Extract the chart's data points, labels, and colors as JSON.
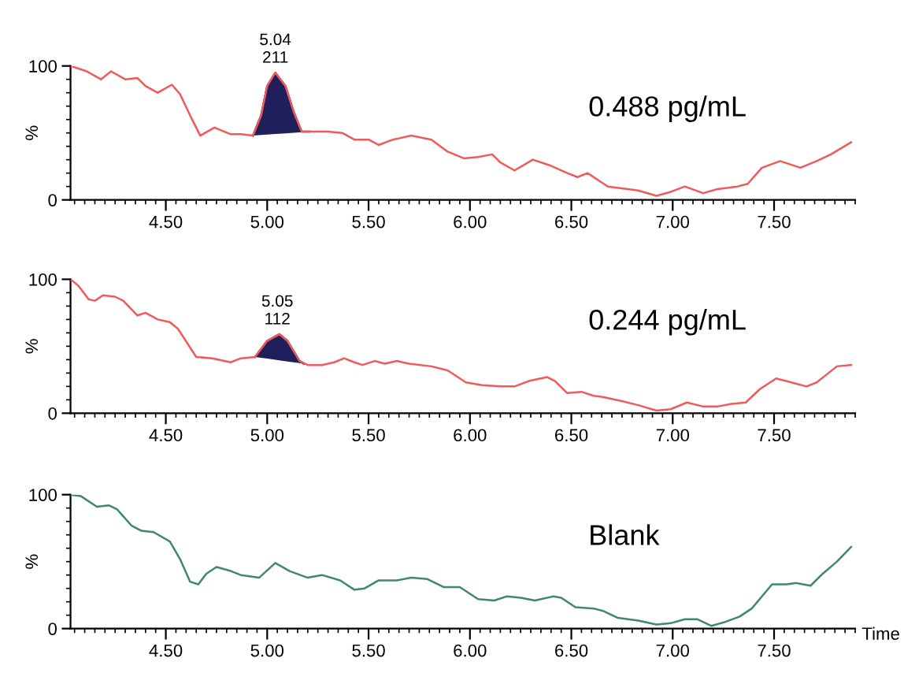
{
  "chart_data": [
    {
      "type": "line",
      "ylabel": "%",
      "xlim": [
        4.03,
        7.9
      ],
      "xticks": [
        {
          "value": 4.5,
          "label": "4.50"
        },
        {
          "value": 5.0,
          "label": "5.00"
        },
        {
          "value": 5.5,
          "label": "5.50"
        },
        {
          "value": 6.0,
          "label": "6.00"
        },
        {
          "value": 6.5,
          "label": "6.50"
        },
        {
          "value": 7.0,
          "label": "7.00"
        },
        {
          "value": 7.5,
          "label": "7.50"
        }
      ],
      "ylim": [
        0,
        100
      ],
      "yticks": [
        0,
        100
      ],
      "grid": false,
      "legend": false,
      "marker": "none",
      "line_style": "solid",
      "annotations": [
        {
          "text": "5.04\n211",
          "x": 5.04,
          "y": 95
        },
        "0.488 pg/mL"
      ],
      "series": [
        {
          "color": "#f05a5a",
          "x": [
            4.03,
            4.11,
            4.18,
            4.23,
            4.3,
            4.36,
            4.4,
            4.46,
            4.53,
            4.57,
            4.62,
            4.67,
            4.74,
            4.82,
            4.87,
            4.93,
            4.97,
            5.0,
            5.04,
            5.09,
            5.13,
            5.17,
            5.21,
            5.3,
            5.37,
            5.43,
            5.5,
            5.55,
            5.62,
            5.71,
            5.81,
            5.89,
            5.97,
            6.04,
            6.11,
            6.15,
            6.22,
            6.31,
            6.39,
            6.48,
            6.53,
            6.58,
            6.68,
            6.78,
            6.83,
            6.92,
            6.99,
            7.06,
            7.15,
            7.22,
            7.32,
            7.37,
            7.44,
            7.53,
            7.63,
            7.71,
            7.78,
            7.88
          ],
          "values": [
            100,
            96,
            90,
            96,
            90,
            91,
            85,
            80,
            86,
            79,
            63,
            48,
            54,
            49,
            49,
            48,
            63,
            85,
            95,
            85,
            66,
            51,
            51,
            51,
            50,
            45,
            45,
            41,
            45,
            48,
            45,
            36,
            31,
            32,
            34,
            28,
            22,
            30,
            26,
            20,
            17,
            20,
            10,
            8,
            7,
            3,
            6,
            10,
            5,
            8,
            10,
            12,
            24,
            29,
            24,
            29,
            34,
            43
          ]
        },
        {
          "type": "area",
          "color": "#1f1f5c",
          "x": [
            4.93,
            4.97,
            5.0,
            5.04,
            5.09,
            5.13,
            5.17,
            5.21
          ],
          "values": [
            48,
            63,
            85,
            95,
            85,
            66,
            51,
            51
          ]
        }
      ]
    },
    {
      "type": "line",
      "ylabel": "%",
      "xlim": [
        4.03,
        7.9
      ],
      "xticks": [
        {
          "value": 4.5,
          "label": "4.50"
        },
        {
          "value": 5.0,
          "label": "5.00"
        },
        {
          "value": 5.5,
          "label": "5.50"
        },
        {
          "value": 6.0,
          "label": "6.00"
        },
        {
          "value": 6.5,
          "label": "6.50"
        },
        {
          "value": 7.0,
          "label": "7.00"
        },
        {
          "value": 7.5,
          "label": "7.50"
        }
      ],
      "ylim": [
        0,
        100
      ],
      "yticks": [
        0,
        100
      ],
      "grid": false,
      "legend": false,
      "marker": "none",
      "line_style": "solid",
      "annotations": [
        {
          "text": "5.05\n112",
          "x": 5.05,
          "y": 59
        },
        "0.244 pg/mL"
      ],
      "series": [
        {
          "color": "#f05a5a",
          "x": [
            4.03,
            4.07,
            4.12,
            4.15,
            4.19,
            4.25,
            4.29,
            4.36,
            4.4,
            4.46,
            4.52,
            4.56,
            4.65,
            4.73,
            4.82,
            4.87,
            4.94,
            5.0,
            5.06,
            5.1,
            5.16,
            5.2,
            5.27,
            5.33,
            5.38,
            5.43,
            5.47,
            5.53,
            5.58,
            5.64,
            5.7,
            5.81,
            5.89,
            5.98,
            6.06,
            6.15,
            6.22,
            6.29,
            6.38,
            6.42,
            6.48,
            6.55,
            6.61,
            6.66,
            6.75,
            6.83,
            6.92,
            6.99,
            7.07,
            7.15,
            7.22,
            7.29,
            7.36,
            7.43,
            7.51,
            7.56,
            7.66,
            7.71,
            7.81,
            7.88
          ],
          "values": [
            100,
            95,
            85,
            84,
            88,
            87,
            84,
            73,
            75,
            70,
            68,
            63,
            42,
            41,
            38,
            41,
            42,
            54,
            59,
            54,
            39,
            36,
            36,
            38,
            41,
            38,
            36,
            39,
            37,
            39,
            37,
            35,
            32,
            23,
            21,
            20,
            20,
            24,
            27,
            24,
            15,
            16,
            13,
            12,
            9,
            6,
            2,
            3,
            8,
            5,
            5,
            7,
            8,
            18,
            26,
            24,
            20,
            23,
            35,
            36
          ]
        },
        {
          "type": "area",
          "color": "#1f1f5c",
          "x": [
            4.94,
            5.0,
            5.06,
            5.1,
            5.16,
            5.18
          ],
          "values": [
            42,
            54,
            59,
            54,
            39,
            37
          ]
        }
      ]
    },
    {
      "type": "line",
      "ylabel": "%",
      "xlabel": "Time",
      "xlim": [
        4.03,
        7.9
      ],
      "xticks": [
        {
          "value": 4.5,
          "label": "4.50"
        },
        {
          "value": 5.0,
          "label": "5.00"
        },
        {
          "value": 5.5,
          "label": "5.50"
        },
        {
          "value": 6.0,
          "label": "6.00"
        },
        {
          "value": 6.5,
          "label": "6.50"
        },
        {
          "value": 7.0,
          "label": "7.00"
        },
        {
          "value": 7.5,
          "label": "7.50"
        }
      ],
      "ylim": [
        0,
        100
      ],
      "yticks": [
        0,
        100
      ],
      "grid": false,
      "legend": false,
      "marker": "none",
      "line_style": "solid",
      "annotations": [
        "Blank"
      ],
      "series": [
        {
          "color": "#3f8a66",
          "x": [
            4.03,
            4.08,
            4.16,
            4.22,
            4.26,
            4.33,
            4.38,
            4.44,
            4.52,
            4.57,
            4.62,
            4.66,
            4.7,
            4.75,
            4.82,
            4.87,
            4.96,
            5.04,
            5.11,
            5.2,
            5.27,
            5.36,
            5.43,
            5.48,
            5.55,
            5.64,
            5.71,
            5.79,
            5.87,
            5.95,
            6.04,
            6.12,
            6.18,
            6.25,
            6.32,
            6.41,
            6.45,
            6.52,
            6.61,
            6.66,
            6.73,
            6.83,
            6.92,
            6.99,
            7.06,
            7.12,
            7.19,
            7.26,
            7.33,
            7.39,
            7.49,
            7.56,
            7.61,
            7.68,
            7.74,
            7.81,
            7.88
          ],
          "values": [
            100,
            99,
            91,
            92,
            89,
            77,
            73,
            72,
            65,
            52,
            35,
            33,
            41,
            46,
            43,
            40,
            38,
            49,
            43,
            38,
            40,
            36,
            29,
            30,
            36,
            36,
            38,
            37,
            31,
            31,
            22,
            21,
            24,
            23,
            21,
            24,
            23,
            16,
            15,
            13,
            8,
            6,
            3,
            4,
            7,
            7,
            2,
            5,
            9,
            15,
            33,
            33,
            34,
            32,
            41,
            50,
            61
          ]
        }
      ]
    }
  ]
}
